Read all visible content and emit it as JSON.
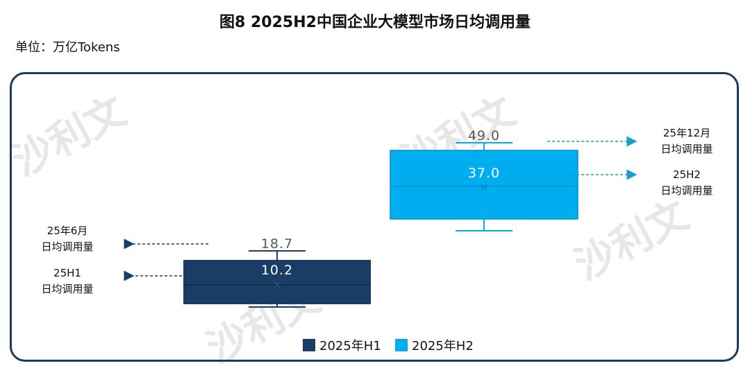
{
  "title": "图8 2025H2中国企业大模型市场日均调用量",
  "unit_label": "单位：万亿Tokens",
  "colors": {
    "h1": "#1a3d66",
    "h2": "#00aeef",
    "frame": "#1e3a5c",
    "arrow_h1": "#1a3d66",
    "arrow_h2": "#1a9ad6"
  },
  "chart_data": {
    "type": "box",
    "title": "图8 2025H2中国企业大模型市场日均调用量",
    "ylabel": "万亿Tokens",
    "series": [
      {
        "name": "2025年H1",
        "max": 18.7,
        "mean": 10.2,
        "max_label": "18.7",
        "mean_label": "10.2",
        "annotations": [
          {
            "line1": "25年6月",
            "line2": "日均调用量"
          },
          {
            "line1": "25H1",
            "line2": "日均调用量"
          }
        ]
      },
      {
        "name": "2025年H2",
        "max": 49.0,
        "mean": 37.0,
        "max_label": "49.0",
        "mean_label": "37.0",
        "annotations": [
          {
            "line1": "25年12月",
            "line2": "日均调用量"
          },
          {
            "line1": "25H2",
            "line2": "日均调用量"
          }
        ]
      }
    ],
    "legend": [
      "2025年H1",
      "2025年H2"
    ]
  }
}
